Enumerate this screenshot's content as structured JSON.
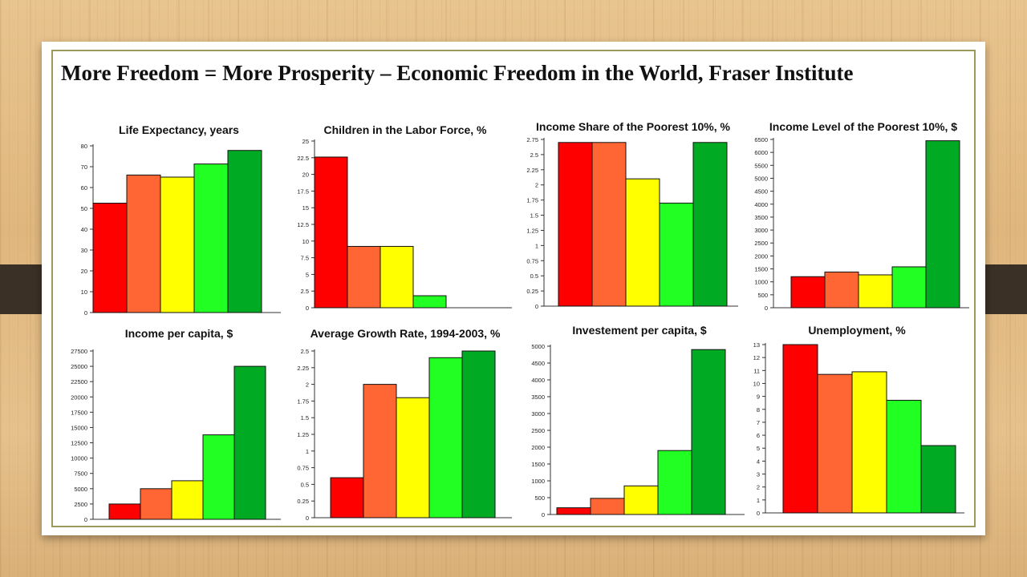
{
  "slide": {
    "title": "More Freedom = More Prosperity – Economic Freedom in the World, Fraser Institute"
  },
  "colors": [
    "#ff0000",
    "#ff6633",
    "#ffff00",
    "#22ff22",
    "#00aa22"
  ],
  "chart_data": [
    {
      "type": "bar",
      "title": "Life Expectancy, years",
      "categories": [
        "",
        "",
        "",
        "",
        ""
      ],
      "values": [
        52.5,
        66,
        65,
        71.3,
        77.8
      ],
      "ylim": [
        0,
        80
      ],
      "yticks": [
        "0",
        "10",
        "20",
        "30",
        "40",
        "50",
        "60",
        "70",
        "80"
      ],
      "ystep": 10
    },
    {
      "type": "bar",
      "title": "Children in the Labor Force, %",
      "categories": [
        "",
        "",
        "",
        "",
        ""
      ],
      "values": [
        22.6,
        9.2,
        9.2,
        1.8,
        0
      ],
      "ylim": [
        0,
        25
      ],
      "yticks": [
        "0",
        "2.5",
        "5",
        "7.5",
        "10",
        "12.5",
        "15",
        "17.5",
        "20",
        "22.5",
        "25"
      ],
      "ystep": 2.5
    },
    {
      "type": "bar",
      "title": "Income Share of the Poorest 10%, %",
      "categories": [
        "",
        "",
        "",
        "",
        ""
      ],
      "values": [
        2.7,
        2.7,
        2.1,
        1.7,
        2.7
      ],
      "ylim": [
        0,
        2.75
      ],
      "yticks": [
        "0",
        "0.25",
        "0.5",
        "0.75",
        "1",
        "1.25",
        "1.5",
        "1.75",
        "2",
        "2.25",
        "2.5",
        "2.75"
      ],
      "ystep": 0.25
    },
    {
      "type": "bar",
      "title": "Income Level of the Poorest 10%, $",
      "categories": [
        "",
        "",
        "",
        "",
        ""
      ],
      "values": [
        1200,
        1380,
        1270,
        1580,
        6450
      ],
      "ylim": [
        0,
        6500
      ],
      "yticks": [
        "0",
        "500",
        "1000",
        "1500",
        "2000",
        "2500",
        "3000",
        "3500",
        "4000",
        "4500",
        "5000",
        "5500",
        "6000",
        "6500"
      ],
      "ystep": 500
    },
    {
      "type": "bar",
      "title": "Income per capita, $",
      "categories": [
        "",
        "",
        "",
        "",
        ""
      ],
      "values": [
        2500,
        5000,
        6300,
        13800,
        25000
      ],
      "ylim": [
        0,
        27500
      ],
      "yticks": [
        "0",
        "2500",
        "5000",
        "7500",
        "10000",
        "12500",
        "15000",
        "17500",
        "20000",
        "22500",
        "25000",
        "27500"
      ],
      "ystep": 2500
    },
    {
      "type": "bar",
      "title": "Average Growth Rate, 1994-2003, %",
      "categories": [
        "",
        "",
        "",
        "",
        ""
      ],
      "values": [
        0.6,
        2.0,
        1.8,
        2.4,
        2.5
      ],
      "ylim": [
        0,
        2.5
      ],
      "yticks": [
        "0",
        "0.25",
        "0.5",
        "0.75",
        "1",
        "1.25",
        "1.5",
        "1.75",
        "2",
        "2.25",
        "2.5"
      ],
      "ystep": 0.25
    },
    {
      "type": "bar",
      "title": "Investement per capita, $",
      "categories": [
        "",
        "",
        "",
        "",
        ""
      ],
      "values": [
        200,
        480,
        850,
        1900,
        4900
      ],
      "ylim": [
        0,
        5000
      ],
      "yticks": [
        "0",
        "500",
        "1000",
        "1500",
        "2000",
        "2500",
        "3000",
        "3500",
        "4000",
        "4500",
        "5000"
      ],
      "ystep": 500
    },
    {
      "type": "bar",
      "title": "Unemployment, %",
      "categories": [
        "",
        "",
        "",
        "",
        ""
      ],
      "values": [
        13,
        10.7,
        10.9,
        8.7,
        5.2
      ],
      "ylim": [
        0,
        13
      ],
      "yticks": [
        "0",
        "1",
        "2",
        "3",
        "4",
        "5",
        "6",
        "7",
        "8",
        "9",
        "10",
        "11",
        "12",
        "13"
      ],
      "ystep": 1
    }
  ]
}
